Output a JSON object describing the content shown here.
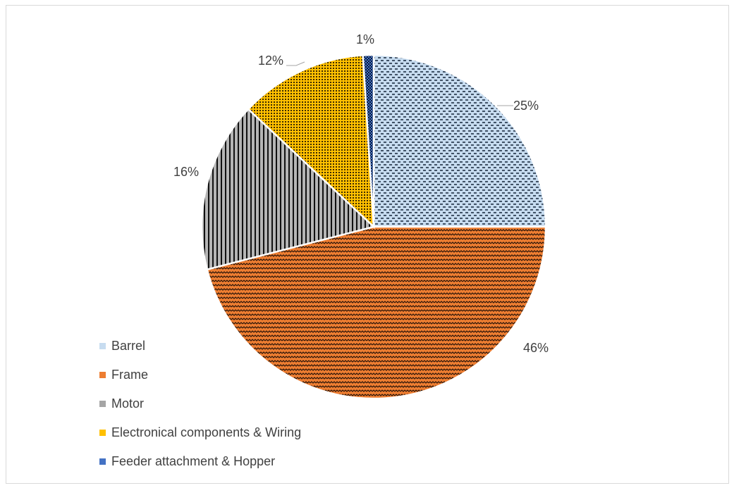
{
  "chart_data": {
    "type": "pie",
    "categories": [
      "Barrel",
      "Frame",
      "Motor",
      "Electronical components & Wiring",
      "Feeder attachment & Hopper"
    ],
    "values": [
      25,
      46,
      16,
      12,
      1
    ],
    "data_labels": [
      "25%",
      "46%",
      "16%",
      "12%",
      "1%"
    ],
    "colors": [
      "#c7dcf0",
      "#ed7d31",
      "#a5a5a5",
      "#ffc000",
      "#4472c4"
    ],
    "patterns": [
      "dashed-horizontal",
      "zigzag",
      "vertical-lines",
      "dotted-grid",
      "checker"
    ],
    "legend_position": "left-bottom",
    "title": ""
  }
}
